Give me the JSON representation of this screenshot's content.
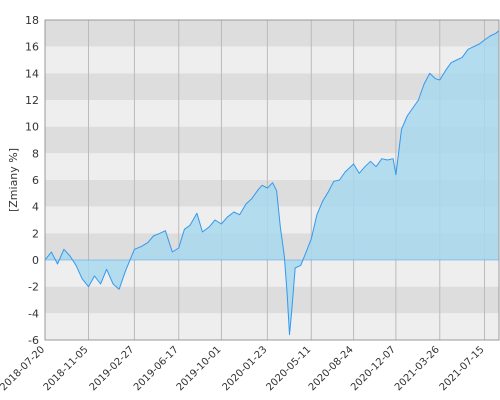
{
  "chart_data": {
    "type": "area",
    "title": "",
    "xlabel": "",
    "ylabel": "[Zmiany %]",
    "ylim": [
      -6,
      18
    ],
    "xlim": [
      "2018-07-20",
      "2021-08-20"
    ],
    "y_ticks": [
      -6,
      -4,
      -2,
      0,
      2,
      4,
      6,
      8,
      10,
      12,
      14,
      16,
      18
    ],
    "x_ticks": [
      "2018-07-20",
      "2018-11-05",
      "2019-02-27",
      "2019-06-17",
      "2019-10-01",
      "2020-01-23",
      "2020-05-11",
      "2020-08-24",
      "2020-12-07",
      "2021-03-26",
      "2021-07-15"
    ],
    "grid": "horizontal alternating bands with vertical gridlines",
    "legend": "none",
    "colors": {
      "line": "#3399ee",
      "area_fill": "#a8d8ee",
      "band_dark": "#dddddd",
      "band_light": "#eeeeee",
      "gridline": "#bbbbbb"
    },
    "series": [
      {
        "x": [
          "2018-07-20",
          "2018-08-05",
          "2018-08-20",
          "2018-09-05",
          "2018-09-20",
          "2018-10-05",
          "2018-10-20",
          "2018-11-05",
          "2018-11-20",
          "2018-12-05",
          "2018-12-20",
          "2019-01-05",
          "2019-01-20",
          "2019-02-05",
          "2019-02-27",
          "2019-03-15",
          "2019-04-01",
          "2019-04-15",
          "2019-05-01",
          "2019-05-15",
          "2019-06-01",
          "2019-06-17",
          "2019-07-01",
          "2019-07-15",
          "2019-08-01",
          "2019-08-15",
          "2019-09-01",
          "2019-09-15",
          "2019-10-01",
          "2019-10-15",
          "2019-11-01",
          "2019-11-15",
          "2019-12-01",
          "2019-12-15",
          "2020-01-01",
          "2020-01-10",
          "2020-01-23",
          "2020-02-05",
          "2020-02-15",
          "2020-02-24",
          "2020-03-05",
          "2020-03-12",
          "2020-03-18",
          "2020-03-23",
          "2020-04-01",
          "2020-04-15",
          "2020-05-01",
          "2020-05-11",
          "2020-05-25",
          "2020-06-08",
          "2020-06-22",
          "2020-07-06",
          "2020-07-20",
          "2020-08-03",
          "2020-08-24",
          "2020-09-07",
          "2020-09-21",
          "2020-10-05",
          "2020-10-19",
          "2020-11-02",
          "2020-11-16",
          "2020-11-30",
          "2020-12-07",
          "2020-12-21",
          "2021-01-04",
          "2021-01-18",
          "2021-02-01",
          "2021-02-15",
          "2021-03-01",
          "2021-03-15",
          "2021-03-26",
          "2021-04-09",
          "2021-04-23",
          "2021-05-07",
          "2021-05-21",
          "2021-06-04",
          "2021-06-18",
          "2021-07-02",
          "2021-07-15",
          "2021-07-29",
          "2021-08-12",
          "2021-08-20"
        ],
        "values": [
          0.0,
          0.6,
          -0.3,
          0.8,
          0.3,
          -0.4,
          -1.4,
          -2.0,
          -1.2,
          -1.8,
          -0.7,
          -1.8,
          -2.2,
          -0.8,
          0.8,
          1.0,
          1.3,
          1.8,
          2.0,
          2.2,
          0.6,
          0.9,
          2.3,
          2.6,
          3.5,
          2.1,
          2.5,
          3.0,
          2.7,
          3.2,
          3.6,
          3.4,
          4.2,
          4.6,
          5.3,
          5.6,
          5.4,
          5.8,
          5.2,
          2.5,
          0.3,
          -2.5,
          -5.6,
          -4.0,
          -0.6,
          -0.4,
          0.8,
          1.6,
          3.4,
          4.4,
          5.1,
          5.9,
          6.0,
          6.6,
          7.2,
          6.5,
          7.0,
          7.4,
          7.0,
          7.6,
          7.5,
          7.6,
          6.4,
          9.8,
          10.8,
          11.4,
          12.0,
          13.2,
          14.0,
          13.6,
          13.5,
          14.2,
          14.8,
          15.0,
          15.2,
          15.8,
          16.0,
          16.2,
          16.5,
          16.8,
          17.0,
          17.2
        ]
      }
    ]
  }
}
